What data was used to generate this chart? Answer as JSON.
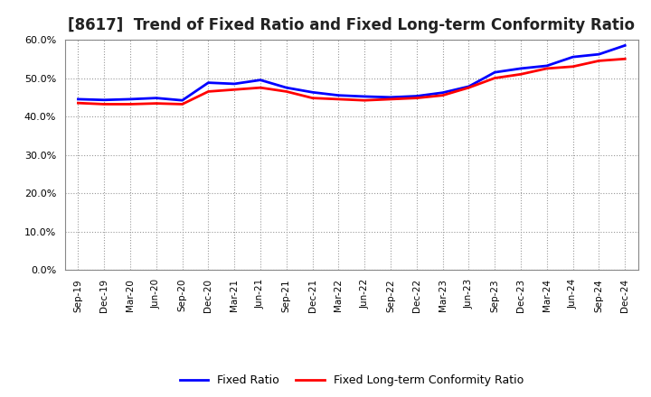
{
  "title": "[8617]  Trend of Fixed Ratio and Fixed Long-term Conformity Ratio",
  "x_labels": [
    "Sep-19",
    "Dec-19",
    "Mar-20",
    "Jun-20",
    "Sep-20",
    "Dec-20",
    "Mar-21",
    "Jun-21",
    "Sep-21",
    "Dec-21",
    "Mar-22",
    "Jun-22",
    "Sep-22",
    "Dec-22",
    "Mar-23",
    "Jun-23",
    "Sep-23",
    "Dec-23",
    "Mar-24",
    "Jun-24",
    "Sep-24",
    "Dec-24"
  ],
  "fixed_ratio": [
    44.5,
    44.3,
    44.5,
    44.8,
    44.2,
    48.8,
    48.5,
    49.5,
    47.5,
    46.3,
    45.5,
    45.2,
    45.0,
    45.3,
    46.2,
    47.8,
    51.5,
    52.5,
    53.2,
    55.5,
    56.2,
    58.5
  ],
  "fixed_lt_ratio": [
    43.5,
    43.2,
    43.2,
    43.4,
    43.2,
    46.5,
    47.0,
    47.5,
    46.5,
    44.8,
    44.5,
    44.2,
    44.5,
    44.8,
    45.5,
    47.5,
    50.0,
    51.0,
    52.5,
    53.0,
    54.5,
    55.0
  ],
  "fixed_ratio_color": "#0000FF",
  "fixed_lt_ratio_color": "#FF0000",
  "ylim": [
    0,
    60
  ],
  "yticks": [
    0,
    10,
    20,
    30,
    40,
    50,
    60
  ],
  "background_color": "#FFFFFF",
  "plot_bg_color": "#FFFFFF",
  "grid_color": "#999999",
  "legend_fixed_ratio": "Fixed Ratio",
  "legend_fixed_lt": "Fixed Long-term Conformity Ratio",
  "title_fontsize": 12,
  "line_width": 2.0
}
